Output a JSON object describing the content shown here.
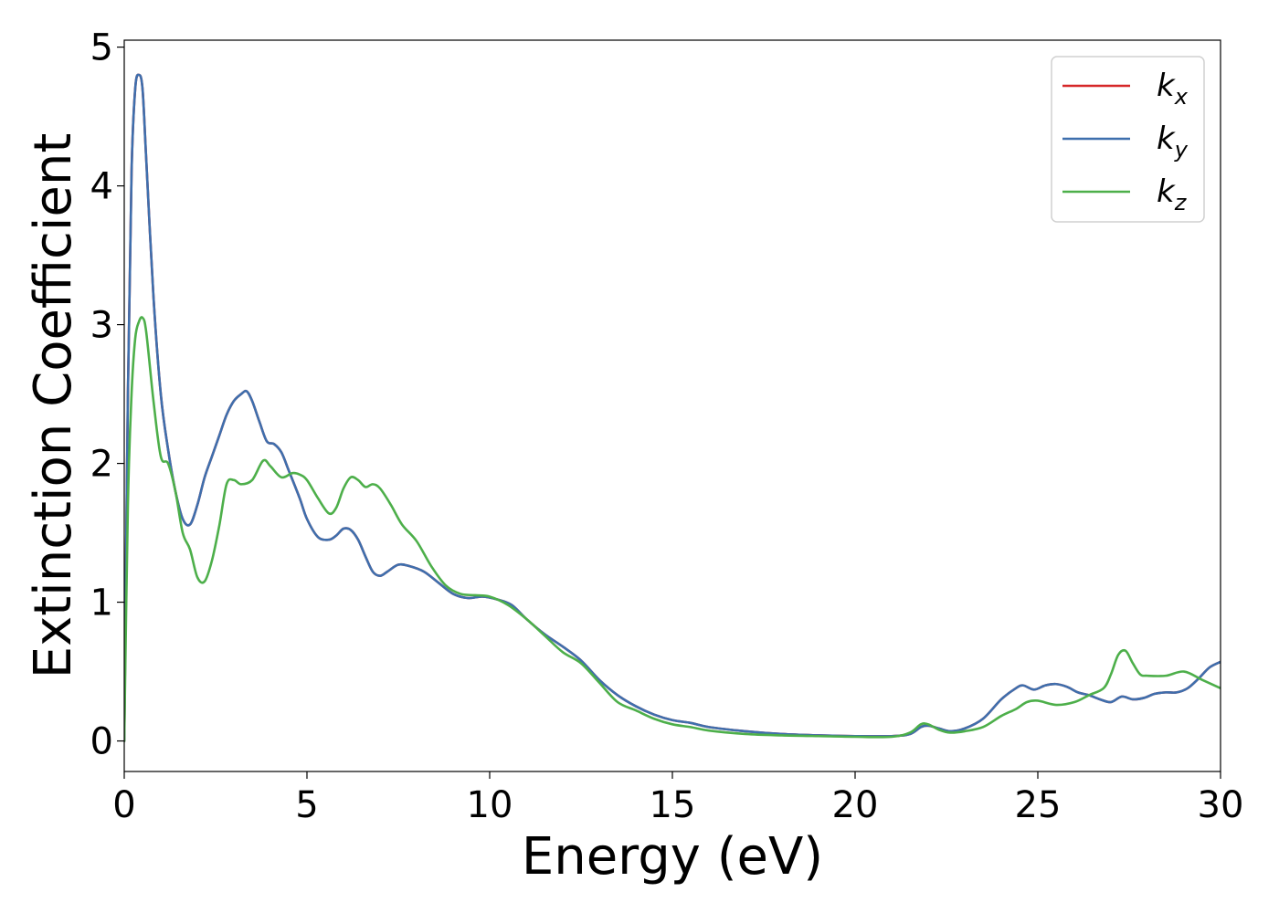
{
  "chart_data": {
    "type": "line",
    "title": "",
    "xlabel": "Energy (eV)",
    "ylabel": "Extinction Coefficient",
    "xlim": [
      0,
      30
    ],
    "ylim": [
      -0.22,
      5.05
    ],
    "xticks": [
      "0",
      "5",
      "10",
      "15",
      "20",
      "25",
      "30"
    ],
    "yticks": [
      "0",
      "1",
      "2",
      "3",
      "4",
      "5"
    ],
    "grid": false,
    "legend_position": "top-right",
    "series": [
      {
        "name": "k",
        "sub": "x",
        "color": "#d62728",
        "x": [
          0,
          0.1,
          0.2,
          0.3,
          0.4,
          0.5,
          0.6,
          0.8,
          1.0,
          1.2,
          1.4,
          1.6,
          1.8,
          2.0,
          2.2,
          2.4,
          2.6,
          2.8,
          3.0,
          3.2,
          3.35,
          3.5,
          3.7,
          3.9,
          4.1,
          4.3,
          4.5,
          4.8,
          5.0,
          5.3,
          5.6,
          5.8,
          6.0,
          6.2,
          6.4,
          6.6,
          6.8,
          7.0,
          7.2,
          7.5,
          7.8,
          8.2,
          8.6,
          9.0,
          9.4,
          9.8,
          10.2,
          10.6,
          11.0,
          11.5,
          12.0,
          12.5,
          13.0,
          13.5,
          14.0,
          14.5,
          15.0,
          15.5,
          16.0,
          17.0,
          18.0,
          19.0,
          20.0,
          21.0,
          21.5,
          21.8,
          22.0,
          22.3,
          22.6,
          23.0,
          23.5,
          24.0,
          24.4,
          24.6,
          24.9,
          25.2,
          25.5,
          25.8,
          26.1,
          26.4,
          26.7,
          27.0,
          27.3,
          27.6,
          27.9,
          28.2,
          28.5,
          28.8,
          29.1,
          29.4,
          29.7,
          30.0
        ],
        "y": [
          0.0,
          2.5,
          4.1,
          4.7,
          4.8,
          4.7,
          4.2,
          3.2,
          2.5,
          2.1,
          1.8,
          1.6,
          1.56,
          1.7,
          1.9,
          2.05,
          2.2,
          2.35,
          2.45,
          2.5,
          2.52,
          2.45,
          2.3,
          2.16,
          2.14,
          2.08,
          1.95,
          1.75,
          1.6,
          1.47,
          1.45,
          1.48,
          1.53,
          1.52,
          1.45,
          1.33,
          1.22,
          1.19,
          1.22,
          1.27,
          1.26,
          1.22,
          1.14,
          1.06,
          1.03,
          1.04,
          1.02,
          0.98,
          0.88,
          0.77,
          0.68,
          0.58,
          0.44,
          0.33,
          0.25,
          0.19,
          0.15,
          0.13,
          0.1,
          0.07,
          0.05,
          0.04,
          0.035,
          0.035,
          0.05,
          0.1,
          0.11,
          0.09,
          0.07,
          0.09,
          0.16,
          0.3,
          0.38,
          0.4,
          0.37,
          0.4,
          0.41,
          0.39,
          0.35,
          0.33,
          0.3,
          0.28,
          0.32,
          0.3,
          0.31,
          0.34,
          0.35,
          0.35,
          0.38,
          0.45,
          0.53,
          0.57
        ]
      },
      {
        "name": "k",
        "sub": "y",
        "color": "#3e6fad",
        "x": [
          0,
          0.1,
          0.2,
          0.3,
          0.4,
          0.5,
          0.6,
          0.8,
          1.0,
          1.2,
          1.4,
          1.6,
          1.8,
          2.0,
          2.2,
          2.4,
          2.6,
          2.8,
          3.0,
          3.2,
          3.35,
          3.5,
          3.7,
          3.9,
          4.1,
          4.3,
          4.5,
          4.8,
          5.0,
          5.3,
          5.6,
          5.8,
          6.0,
          6.2,
          6.4,
          6.6,
          6.8,
          7.0,
          7.2,
          7.5,
          7.8,
          8.2,
          8.6,
          9.0,
          9.4,
          9.8,
          10.2,
          10.6,
          11.0,
          11.5,
          12.0,
          12.5,
          13.0,
          13.5,
          14.0,
          14.5,
          15.0,
          15.5,
          16.0,
          17.0,
          18.0,
          19.0,
          20.0,
          21.0,
          21.5,
          21.8,
          22.0,
          22.3,
          22.6,
          23.0,
          23.5,
          24.0,
          24.4,
          24.6,
          24.9,
          25.2,
          25.5,
          25.8,
          26.1,
          26.4,
          26.7,
          27.0,
          27.3,
          27.6,
          27.9,
          28.2,
          28.5,
          28.8,
          29.1,
          29.4,
          29.7,
          30.0
        ],
        "y": [
          0.0,
          2.5,
          4.1,
          4.7,
          4.8,
          4.7,
          4.2,
          3.2,
          2.5,
          2.1,
          1.8,
          1.6,
          1.56,
          1.7,
          1.9,
          2.05,
          2.2,
          2.35,
          2.45,
          2.5,
          2.52,
          2.45,
          2.3,
          2.16,
          2.14,
          2.08,
          1.95,
          1.75,
          1.6,
          1.47,
          1.45,
          1.48,
          1.53,
          1.52,
          1.45,
          1.33,
          1.22,
          1.19,
          1.22,
          1.27,
          1.26,
          1.22,
          1.14,
          1.06,
          1.03,
          1.04,
          1.02,
          0.98,
          0.88,
          0.77,
          0.68,
          0.58,
          0.44,
          0.33,
          0.25,
          0.19,
          0.15,
          0.13,
          0.1,
          0.07,
          0.05,
          0.04,
          0.035,
          0.035,
          0.05,
          0.1,
          0.11,
          0.09,
          0.07,
          0.09,
          0.16,
          0.3,
          0.38,
          0.4,
          0.37,
          0.4,
          0.41,
          0.39,
          0.35,
          0.33,
          0.3,
          0.28,
          0.32,
          0.3,
          0.31,
          0.34,
          0.35,
          0.35,
          0.38,
          0.45,
          0.53,
          0.57
        ]
      },
      {
        "name": "k",
        "sub": "z",
        "color": "#4daf4a",
        "x": [
          0,
          0.1,
          0.2,
          0.3,
          0.4,
          0.5,
          0.6,
          0.8,
          1.0,
          1.2,
          1.4,
          1.6,
          1.8,
          2.0,
          2.2,
          2.4,
          2.6,
          2.8,
          3.0,
          3.2,
          3.5,
          3.8,
          4.0,
          4.3,
          4.6,
          4.8,
          5.0,
          5.3,
          5.6,
          5.8,
          6.0,
          6.2,
          6.4,
          6.6,
          6.8,
          7.0,
          7.3,
          7.6,
          8.0,
          8.4,
          8.8,
          9.2,
          9.6,
          10.0,
          10.5,
          11.0,
          11.5,
          12.0,
          12.5,
          13.0,
          13.5,
          14.0,
          14.5,
          15.0,
          15.5,
          16.0,
          17.0,
          18.0,
          19.0,
          20.0,
          21.0,
          21.5,
          21.8,
          22.0,
          22.3,
          22.6,
          23.0,
          23.5,
          24.0,
          24.4,
          24.7,
          25.0,
          25.5,
          26.0,
          26.4,
          26.8,
          27.0,
          27.2,
          27.4,
          27.6,
          27.8,
          28.0,
          28.5,
          29.0,
          29.5,
          30.0
        ],
        "y": [
          0.0,
          1.7,
          2.5,
          2.9,
          3.02,
          3.05,
          2.95,
          2.45,
          2.05,
          2.0,
          1.8,
          1.5,
          1.38,
          1.18,
          1.15,
          1.3,
          1.55,
          1.85,
          1.88,
          1.85,
          1.88,
          2.02,
          1.98,
          1.9,
          1.93,
          1.92,
          1.88,
          1.75,
          1.64,
          1.68,
          1.82,
          1.9,
          1.88,
          1.83,
          1.85,
          1.82,
          1.7,
          1.56,
          1.44,
          1.26,
          1.12,
          1.06,
          1.05,
          1.04,
          0.98,
          0.88,
          0.76,
          0.64,
          0.56,
          0.42,
          0.28,
          0.22,
          0.16,
          0.12,
          0.1,
          0.075,
          0.05,
          0.04,
          0.035,
          0.03,
          0.03,
          0.06,
          0.12,
          0.12,
          0.08,
          0.06,
          0.07,
          0.1,
          0.18,
          0.23,
          0.28,
          0.29,
          0.26,
          0.28,
          0.33,
          0.38,
          0.48,
          0.62,
          0.65,
          0.56,
          0.48,
          0.47,
          0.47,
          0.5,
          0.44,
          0.38
        ]
      }
    ]
  }
}
